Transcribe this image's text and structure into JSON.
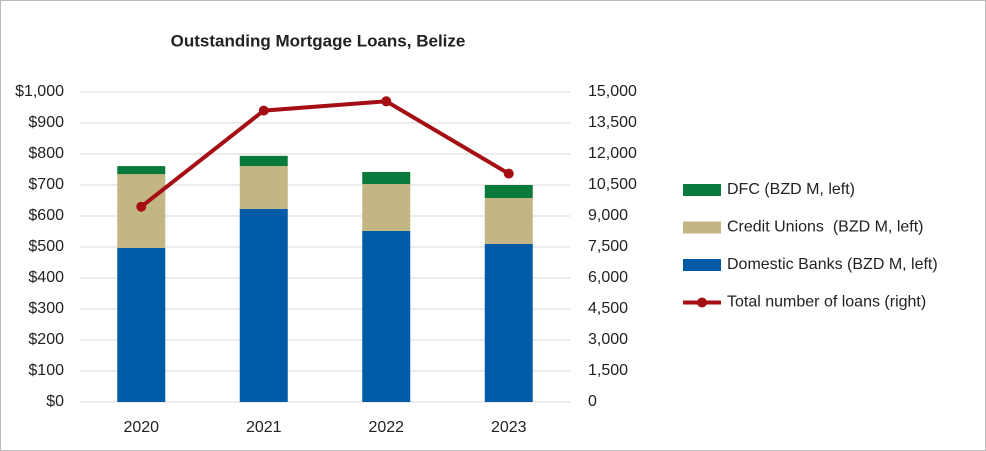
{
  "chart_data": {
    "type": "bar",
    "stacked": true,
    "title": "Outstanding Mortgage Loans, Belize",
    "categories": [
      "2020",
      "2021",
      "2022",
      "2023"
    ],
    "series": [
      {
        "name": "Domestic Banks (BZD M, left)",
        "color": "#005ba6",
        "values": [
          497,
          623,
          552,
          510
        ]
      },
      {
        "name": "Credit Unions  (BZD M, left)",
        "color": "#c3b682",
        "values": [
          238,
          138,
          151,
          148
        ]
      },
      {
        "name": "DFC (BZD M, left)",
        "color": "#0a7a3c",
        "values": [
          26,
          33,
          39,
          42
        ]
      },
      {
        "name": "Total number of loans (right)",
        "color": "#a50e14",
        "type": "line",
        "axis": "y2",
        "values": [
          9450,
          14100,
          14550,
          11050
        ]
      }
    ],
    "ylim": [
      0,
      1000
    ],
    "yticks": [
      {
        "value": 0,
        "label": "$0"
      },
      {
        "value": 100,
        "label": "$100"
      },
      {
        "value": 200,
        "label": "$200"
      },
      {
        "value": 300,
        "label": "$300"
      },
      {
        "value": 400,
        "label": "$400"
      },
      {
        "value": 500,
        "label": "$500"
      },
      {
        "value": 600,
        "label": "$600"
      },
      {
        "value": 700,
        "label": "$700"
      },
      {
        "value": 800,
        "label": "$800"
      },
      {
        "value": 900,
        "label": "$900"
      },
      {
        "value": 1000,
        "label": "$1,000"
      }
    ],
    "y2lim": [
      0,
      15000
    ],
    "y2ticks": [
      0,
      {
        "value": 1500,
        "label": "1,500"
      },
      {
        "value": 3000,
        "label": "3,000"
      },
      {
        "value": 4500,
        "label": "4,500"
      },
      {
        "value": 6000,
        "label": "6,000"
      },
      {
        "value": 7500,
        "label": "7,500"
      },
      {
        "value": 9000,
        "label": "9,000"
      },
      {
        "value": 10500,
        "label": "10,500"
      },
      {
        "value": 12000,
        "label": "12,000"
      },
      {
        "value": 13500,
        "label": "13,500"
      },
      {
        "value": 15000,
        "label": "15,000"
      }
    ],
    "grid": true,
    "legend": "right"
  }
}
